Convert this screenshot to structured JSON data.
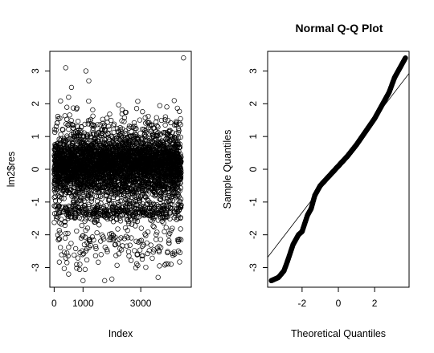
{
  "chart_data": [
    {
      "type": "scatter",
      "title": "",
      "xlabel": "Index",
      "ylabel": "lm2$res",
      "xlim": [
        -150,
        4750
      ],
      "ylim": [
        -3.6,
        3.6
      ],
      "x_ticks": [
        0,
        1000,
        3000
      ],
      "x_tick_labels": [
        "0",
        "1000",
        "3000"
      ],
      "y_ticks": [
        -3,
        -2,
        -1,
        0,
        1,
        2,
        3
      ],
      "y_tick_labels": [
        "-3",
        "-2",
        "-1",
        "0",
        "1",
        "2",
        "3"
      ],
      "grid": false,
      "legend": "none",
      "n_points": 4400,
      "distribution": "residuals mostly between -1.5 and 1, dense band around 0, sparse outliers from -3.4 to 3.4",
      "highlighted_points": [
        {
          "x": 4480,
          "y": 3.4
        },
        {
          "x": 400,
          "y": 3.1
        },
        {
          "x": 1100,
          "y": 3.0
        },
        {
          "x": 600,
          "y": 2.5
        },
        {
          "x": 1200,
          "y": 2.7
        },
        {
          "x": 500,
          "y": 2.2
        },
        {
          "x": 1000,
          "y": -3.4
        },
        {
          "x": 1750,
          "y": -3.4
        },
        {
          "x": 2000,
          "y": -3.35
        },
        {
          "x": 500,
          "y": -3.2
        },
        {
          "x": 3600,
          "y": -3.3
        },
        {
          "x": 4050,
          "y": -2.9
        }
      ]
    },
    {
      "type": "scatter",
      "title": "Normal Q-Q Plot",
      "xlabel": "Theoretical Quantiles",
      "ylabel": "Sample Quantiles",
      "xlim": [
        -3.9,
        3.9
      ],
      "ylim": [
        -3.6,
        3.6
      ],
      "x_ticks": [
        -2,
        0,
        2
      ],
      "x_tick_labels": [
        "-2",
        "0",
        "2"
      ],
      "y_ticks": [
        -3,
        -2,
        -1,
        0,
        1,
        2,
        3
      ],
      "y_tick_labels": [
        "-3",
        "-2",
        "-1",
        "0",
        "1",
        "2",
        "3"
      ],
      "grid": false,
      "legend": "none",
      "reference_line": {
        "intercept": 0.12,
        "slope": 0.72
      },
      "sample_quantile_curve": [
        {
          "x": -3.7,
          "y": -3.4
        },
        {
          "x": -3.3,
          "y": -3.3
        },
        {
          "x": -3.0,
          "y": -3.1
        },
        {
          "x": -2.8,
          "y": -2.8
        },
        {
          "x": -2.5,
          "y": -2.3
        },
        {
          "x": -2.2,
          "y": -2.0
        },
        {
          "x": -2.0,
          "y": -1.9
        },
        {
          "x": -1.7,
          "y": -1.4
        },
        {
          "x": -1.5,
          "y": -1.2
        },
        {
          "x": -1.3,
          "y": -0.8
        },
        {
          "x": -1.0,
          "y": -0.5
        },
        {
          "x": -0.5,
          "y": -0.2
        },
        {
          "x": 0.0,
          "y": 0.1
        },
        {
          "x": 0.5,
          "y": 0.4
        },
        {
          "x": 1.0,
          "y": 0.75
        },
        {
          "x": 1.5,
          "y": 1.15
        },
        {
          "x": 2.0,
          "y": 1.55
        },
        {
          "x": 2.5,
          "y": 2.05
        },
        {
          "x": 2.8,
          "y": 2.35
        },
        {
          "x": 3.1,
          "y": 2.8
        },
        {
          "x": 3.4,
          "y": 3.1
        },
        {
          "x": 3.7,
          "y": 3.4
        }
      ]
    }
  ]
}
